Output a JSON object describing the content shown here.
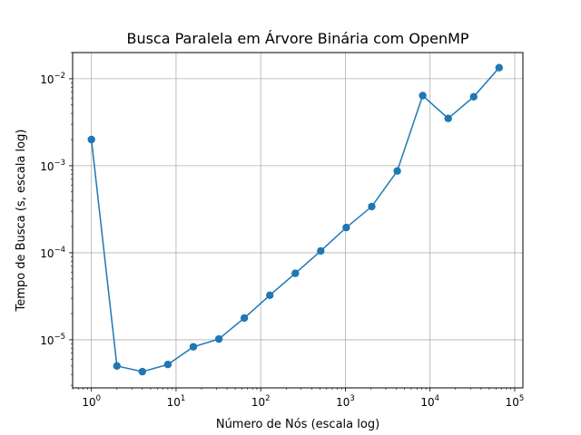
{
  "chart_data": {
    "type": "line",
    "title": "Busca Paralela em Árvore Binária com OpenMP",
    "xlabel": "Número de Nós (escala log)",
    "ylabel": "Tempo de Busca (s, escala log)",
    "xscale": "log",
    "yscale": "log",
    "xlim": [
      0.6,
      125000
    ],
    "ylim": [
      2.8e-06,
      0.02
    ],
    "grid": true,
    "x_ticks": [
      {
        "base": "10",
        "exp": "0",
        "value": 1
      },
      {
        "base": "10",
        "exp": "1",
        "value": 10
      },
      {
        "base": "10",
        "exp": "2",
        "value": 100
      },
      {
        "base": "10",
        "exp": "3",
        "value": 1000
      },
      {
        "base": "10",
        "exp": "4",
        "value": 10000
      },
      {
        "base": "10",
        "exp": "5",
        "value": 100000
      }
    ],
    "y_ticks": [
      {
        "base": "10",
        "exp": "−5",
        "value": 1e-05
      },
      {
        "base": "10",
        "exp": "−4",
        "value": 0.0001
      },
      {
        "base": "10",
        "exp": "−3",
        "value": 0.001
      },
      {
        "base": "10",
        "exp": "−2",
        "value": 0.01
      }
    ],
    "series": [
      {
        "color": "#1f77b4",
        "marker": "circle",
        "x": [
          1,
          2,
          4,
          8,
          16,
          32,
          64,
          128,
          256,
          512,
          1024,
          2048,
          4096,
          8192,
          16384,
          32768,
          65536
        ],
        "y": [
          0.002,
          5e-06,
          4.3e-06,
          5.2e-06,
          8.3e-06,
          1.02e-05,
          1.78e-05,
          3.25e-05,
          5.8e-05,
          0.000105,
          0.000195,
          0.00034,
          0.00087,
          0.0064,
          0.0035,
          0.0062,
          0.0134
        ]
      }
    ]
  }
}
